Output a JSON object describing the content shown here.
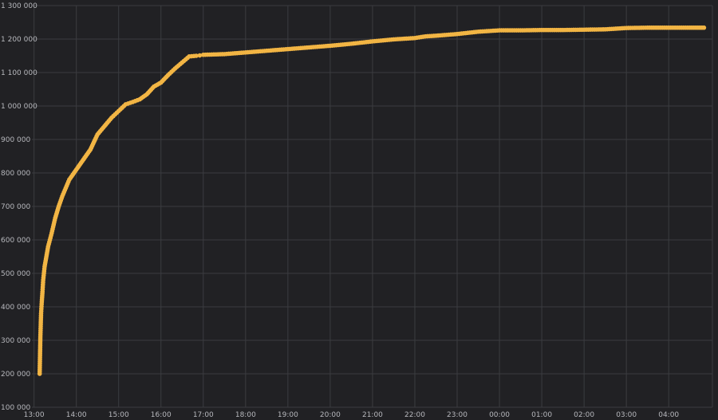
{
  "chart_data": {
    "type": "line",
    "title": "",
    "xlabel": "",
    "ylabel": "",
    "grid": true,
    "legend": "none",
    "color": "#f2b544",
    "background": "#212124",
    "xlim": [
      "12:57",
      "05:02"
    ],
    "ylim": [
      100000,
      1300000
    ],
    "x_ticks": [
      "13:00",
      "14:00",
      "15:00",
      "16:00",
      "17:00",
      "18:00",
      "19:00",
      "20:00",
      "21:00",
      "22:00",
      "23:00",
      "00:00",
      "01:00",
      "02:00",
      "03:00",
      "04:00"
    ],
    "y_ticks": [
      "100 000",
      "200 000",
      "300 000",
      "400 000",
      "500 000",
      "600 000",
      "700 000",
      "800 000",
      "900 000",
      "1 000 000",
      "1 100 000",
      "1 200 000",
      "1 300 000"
    ],
    "series": [
      {
        "x": [
          "13:08",
          "13:09",
          "13:10",
          "13:11",
          "13:12",
          "13:13",
          "13:15",
          "13:20",
          "13:25",
          "13:30",
          "13:35",
          "13:40",
          "13:45",
          "13:50",
          "13:55",
          "14:00",
          "14:10",
          "14:20",
          "14:30",
          "14:40",
          "14:50",
          "15:00",
          "15:10",
          "15:20",
          "15:30",
          "15:40",
          "15:50",
          "16:00",
          "16:10",
          "16:20",
          "16:30",
          "16:40",
          "16:50",
          "16:55",
          "17:00",
          "17:30",
          "18:00",
          "18:30",
          "19:00",
          "19:30",
          "20:00",
          "20:30",
          "21:00",
          "21:30",
          "22:00",
          "22:15",
          "22:30",
          "23:00",
          "23:30",
          "00:00",
          "00:30",
          "01:00",
          "01:30",
          "02:00",
          "02:30",
          "03:00",
          "03:30",
          "04:00",
          "04:30",
          "04:50"
        ],
        "y": [
          200000,
          310000,
          380000,
          415000,
          445000,
          480000,
          520000,
          580000,
          620000,
          665000,
          700000,
          730000,
          755000,
          780000,
          795000,
          810000,
          840000,
          870000,
          915000,
          940000,
          965000,
          985000,
          1005000,
          1012000,
          1020000,
          1035000,
          1058000,
          1070000,
          1092000,
          1112000,
          1130000,
          1148000,
          1150000,
          1151000,
          1153000,
          1155000,
          1160000,
          1165000,
          1170000,
          1175000,
          1180000,
          1186000,
          1193000,
          1199000,
          1203000,
          1208000,
          1210000,
          1215000,
          1222000,
          1226000,
          1226000,
          1227000,
          1227000,
          1228000,
          1229000,
          1233000,
          1234000,
          1234000,
          1234000,
          1234000
        ]
      }
    ]
  }
}
